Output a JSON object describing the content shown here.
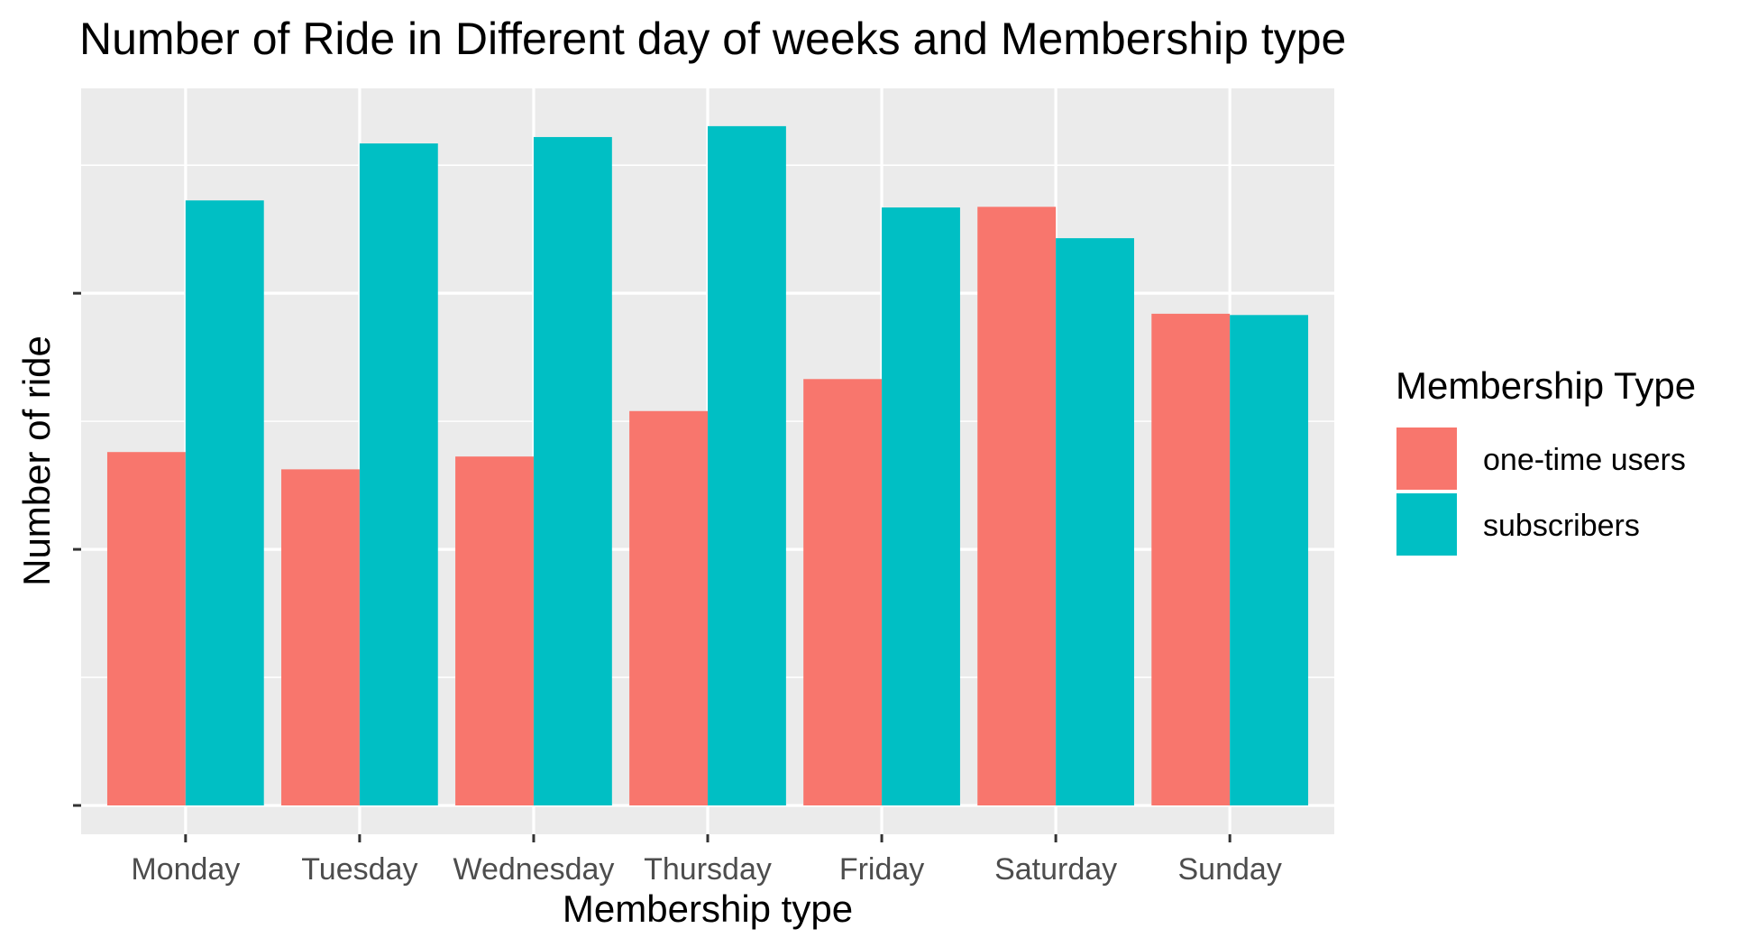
{
  "chart_data": {
    "type": "bar",
    "title": "Number of Ride in Different day of weeks and Membership type",
    "xlabel": "Membership type",
    "ylabel": "Number of ride",
    "categories": [
      "Monday",
      "Tuesday",
      "Wednesday",
      "Thursday",
      "Friday",
      "Saturday",
      "Sunday"
    ],
    "series": [
      {
        "name": "one-time users",
        "color": "#F8766D",
        "values": [
          0.552,
          0.525,
          0.545,
          0.616,
          0.666,
          0.935,
          0.768
        ]
      },
      {
        "name": "subscribers",
        "color": "#00BFC4",
        "values": [
          0.945,
          1.034,
          1.044,
          1.061,
          0.934,
          0.886,
          0.766
        ]
      }
    ],
    "ylim": [
      -0.045,
      1.12
    ],
    "y_tick_values": [
      0,
      0.4,
      0.8
    ],
    "y_tick_labels_visible": false,
    "grid": true,
    "legend": {
      "title": "Membership Type",
      "position": "right"
    }
  }
}
